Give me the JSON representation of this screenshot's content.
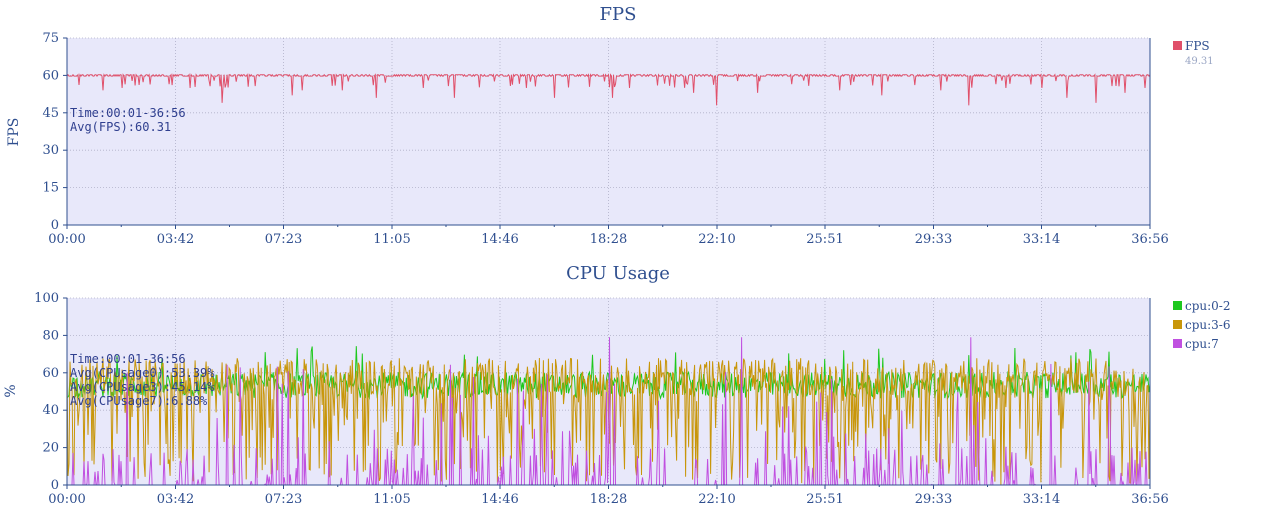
{
  "chart_data": [
    {
      "type": "line",
      "title": "FPS",
      "ylabel": "FPS",
      "xlabel": "",
      "ylim": [
        0,
        75
      ],
      "yticks": [
        "0",
        "15",
        "30",
        "45",
        "60",
        "75"
      ],
      "xlim": [
        "00:00",
        "36:56"
      ],
      "xticks": [
        "00:00",
        "03:42",
        "07:23",
        "11:05",
        "14:46",
        "18:28",
        "22:10",
        "25:51",
        "29:33",
        "33:14",
        "36:56"
      ],
      "grid": true,
      "legend_position": "right",
      "series": [
        {
          "name": "FPS",
          "color": "#e0506a",
          "legend_value": "49.31",
          "baseline": 60,
          "dips": [
            {
              "t": "01:13",
              "v": 54
            },
            {
              "t": "01:52",
              "v": 55
            },
            {
              "t": "02:20",
              "v": 56
            },
            {
              "t": "04:12",
              "v": 55
            },
            {
              "t": "05:17",
              "v": 49
            },
            {
              "t": "07:41",
              "v": 52
            },
            {
              "t": "08:02",
              "v": 54
            },
            {
              "t": "09:24",
              "v": 54
            },
            {
              "t": "10:32",
              "v": 51
            },
            {
              "t": "12:09",
              "v": 55
            },
            {
              "t": "13:12",
              "v": 51
            },
            {
              "t": "15:41",
              "v": 55
            },
            {
              "t": "16:37",
              "v": 51
            },
            {
              "t": "18:37",
              "v": 51
            },
            {
              "t": "19:11",
              "v": 55
            },
            {
              "t": "21:23",
              "v": 53
            },
            {
              "t": "22:10",
              "v": 48
            },
            {
              "t": "23:33",
              "v": 53
            },
            {
              "t": "26:21",
              "v": 54
            },
            {
              "t": "27:48",
              "v": 52
            },
            {
              "t": "29:48",
              "v": 54
            },
            {
              "t": "30:46",
              "v": 48
            },
            {
              "t": "32:02",
              "v": 55
            },
            {
              "t": "33:14",
              "v": 55
            },
            {
              "t": "34:05",
              "v": 51
            },
            {
              "t": "35:05",
              "v": 49
            },
            {
              "t": "36:04",
              "v": 53
            },
            {
              "t": "36:46",
              "v": 55
            }
          ]
        }
      ],
      "annotations": [
        "Time:00:01-36:56",
        "Avg(FPS):60.31"
      ]
    },
    {
      "type": "line",
      "title": "CPU Usage",
      "ylabel": "%",
      "xlabel": "",
      "ylim": [
        0,
        100
      ],
      "yticks": [
        "0",
        "20",
        "40",
        "60",
        "80",
        "100"
      ],
      "xlim": [
        "00:00",
        "36:56"
      ],
      "xticks": [
        "00:00",
        "03:42",
        "07:23",
        "11:05",
        "14:46",
        "18:28",
        "22:10",
        "25:51",
        "29:33",
        "33:14",
        "36:56"
      ],
      "grid": true,
      "legend_position": "right",
      "series": [
        {
          "name": "cpu:0-2",
          "color": "#1ec81e",
          "mean": 53.39,
          "min": 40,
          "max": 75
        },
        {
          "name": "cpu:3-6",
          "color": "#c8960a",
          "mean": 45.14,
          "min": 0,
          "max": 70
        },
        {
          "name": "cpu:7",
          "color": "#c050e0",
          "mean": 6.88,
          "min": 0,
          "max": 79
        }
      ],
      "annotations": [
        "Time:00:01-36:56",
        "Avg(CPUsage0):53.39%",
        "Avg(CPUsage3):45.14%",
        "Avg(CPUsage7):6.88%"
      ]
    }
  ]
}
